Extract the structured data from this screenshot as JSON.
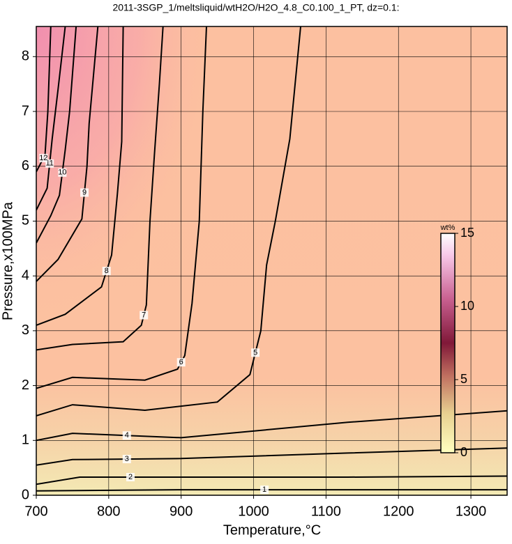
{
  "chart_data": {
    "type": "contour",
    "title": "2011-3SGP_1/meltsliquid/wtH2O/H2O_4.8_C0.100_1_PT, dz=0.1:",
    "x_label": "Temperature,°C",
    "y_label": "Pressure,x100MPa",
    "xlim": [
      700,
      1350
    ],
    "ylim": [
      0,
      8.55
    ],
    "xticks": [
      700,
      800,
      900,
      1000,
      1100,
      1200,
      1300
    ],
    "yticks": [
      0,
      1,
      2,
      3,
      4,
      5,
      6,
      7,
      8
    ],
    "grid": true,
    "contours": [
      {
        "level": 1,
        "x": [
          700,
          900,
          1130,
          1350
        ],
        "y": [
          0.08,
          0.1,
          0.1,
          0.1
        ]
      },
      {
        "level": 2,
        "x": [
          700,
          760,
          900,
          1130,
          1350
        ],
        "y": [
          0.2,
          0.33,
          0.33,
          0.33,
          0.35
        ]
      },
      {
        "level": 3,
        "x": [
          700,
          750,
          900,
          1130,
          1350
        ],
        "y": [
          0.55,
          0.65,
          0.67,
          0.77,
          0.86
        ]
      },
      {
        "level": 4,
        "x": [
          700,
          750,
          900,
          1130,
          1350
        ],
        "y": [
          1.0,
          1.13,
          1.05,
          1.33,
          1.54
        ]
      },
      {
        "level": 5,
        "x": [
          700,
          750,
          850,
          950,
          995,
          1010,
          1018,
          1030,
          1050,
          1065
        ],
        "y": [
          1.45,
          1.65,
          1.55,
          1.7,
          2.2,
          3.0,
          4.2,
          5.0,
          6.5,
          8.55
        ]
      },
      {
        "level": 6,
        "x": [
          700,
          750,
          850,
          895,
          905,
          915,
          925,
          930,
          935
        ],
        "y": [
          1.95,
          2.15,
          2.1,
          2.3,
          2.55,
          3.5,
          5.0,
          7.0,
          8.55
        ]
      },
      {
        "level": 7,
        "x": [
          700,
          750,
          820,
          845,
          852,
          857,
          863,
          870,
          875
        ],
        "y": [
          2.65,
          2.75,
          2.8,
          3.1,
          3.47,
          5.0,
          6.2,
          7.5,
          8.55
        ]
      },
      {
        "level": 8,
        "x": [
          700,
          740,
          790,
          804,
          812,
          818,
          820
        ],
        "y": [
          3.1,
          3.3,
          3.8,
          4.38,
          5.5,
          6.45,
          8.55
        ]
      },
      {
        "level": 9,
        "x": [
          700,
          730,
          763,
          770,
          773,
          785
        ],
        "y": [
          3.9,
          4.3,
          5.04,
          6.0,
          6.78,
          8.55
        ]
      },
      {
        "level": 10,
        "x": [
          700,
          720,
          732,
          740,
          746,
          755
        ],
        "y": [
          4.6,
          5.1,
          5.47,
          6.3,
          7.0,
          8.55
        ]
      },
      {
        "level": 11,
        "x": [
          700,
          715,
          722,
          730,
          740
        ],
        "y": [
          5.2,
          5.6,
          6.5,
          7.4,
          8.55
        ]
      },
      {
        "level": 12,
        "x": [
          700,
          708,
          712,
          716,
          720
        ],
        "y": [
          5.9,
          6.1,
          6.2,
          7.0,
          8.55
        ]
      }
    ],
    "colorbar": {
      "label": "wt%",
      "lim": [
        0,
        15
      ],
      "ticks": [
        0,
        5,
        10,
        15
      ]
    }
  }
}
